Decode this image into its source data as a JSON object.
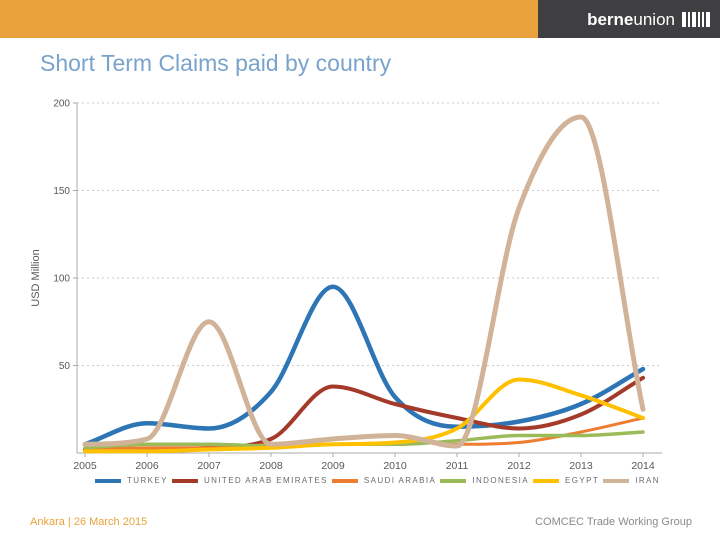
{
  "header": {
    "logo": {
      "bold": "berne",
      "light": "union"
    }
  },
  "title": "Short Term Claims paid by country",
  "chart_data": {
    "type": "line",
    "title": "Short Term Claims paid by country",
    "xlabel": "",
    "ylabel": "USD Million",
    "ylim": [
      0,
      200
    ],
    "yticks": [
      50,
      100,
      150,
      200
    ],
    "grid": true,
    "legend_position": "bottom",
    "categories": [
      2005,
      2006,
      2007,
      2008,
      2009,
      2010,
      2011,
      2012,
      2013,
      2014
    ],
    "series": [
      {
        "name": "TURKEY",
        "color": "#2E75B6",
        "width": 4.5,
        "values": [
          5,
          17,
          14,
          35,
          95,
          32,
          15,
          18,
          28,
          48
        ]
      },
      {
        "name": "UNITED ARAB EMIRATES",
        "color": "#A43B2A",
        "width": 4,
        "values": [
          2,
          2,
          3,
          8,
          38,
          28,
          20,
          14,
          22,
          43
        ]
      },
      {
        "name": "SAUDI ARABIA",
        "color": "#ED7D31",
        "width": 3,
        "values": [
          2,
          3,
          3,
          5,
          8,
          10,
          5,
          6,
          12,
          20
        ]
      },
      {
        "name": "INDONESIA",
        "color": "#9BBB59",
        "width": 3.5,
        "values": [
          3,
          5,
          5,
          4,
          5,
          5,
          7,
          10,
          10,
          12
        ]
      },
      {
        "name": "EGYPT",
        "color": "#FFC000",
        "width": 4,
        "values": [
          1,
          1,
          2,
          3,
          5,
          6,
          14,
          42,
          33,
          20
        ]
      },
      {
        "name": "IRAN",
        "color": "#D1B399",
        "width": 5,
        "values": [
          5,
          8,
          75,
          5,
          8,
          10,
          4,
          140,
          192,
          25
        ]
      }
    ]
  },
  "footer": {
    "left": "Ankara | 26 March 2015",
    "right": "COMCEC Trade Working Group"
  }
}
